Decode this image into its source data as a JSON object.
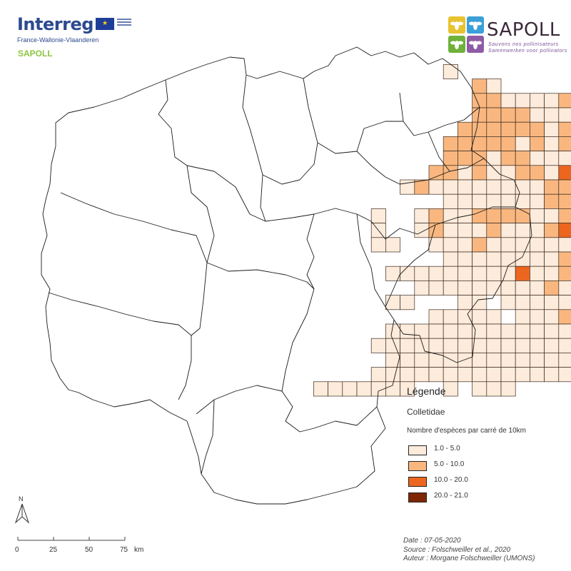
{
  "logos": {
    "interreg_name": "Interreg",
    "interreg_subtitle": "France-Wallonie-Vlaanderen",
    "sapoll_small": "SAPOLL",
    "sapoll_main": "SAPOLL",
    "sapoll_tagline_1": "Sauvons nos pollinisateurs",
    "sapoll_tagline_2": "Samenwerken voor pollinators",
    "colors": {
      "interreg_blue": "#2c4a8f",
      "sapoll_green": "#8cc63f",
      "sapoll_purple": "#7a4e98",
      "tile_yellow": "#e8c32f",
      "tile_blue": "#3b9fd8",
      "tile_green": "#6fb23a",
      "tile_purple": "#8e5ba6"
    }
  },
  "legend": {
    "title": "Légende",
    "layer": "Colletidae",
    "description": "Nombre d'espèces par carré de 10km",
    "classes": [
      {
        "label": "1.0 - 5.0",
        "color": "#fdebdb"
      },
      {
        "label": "5.0 - 10.0",
        "color": "#f9b77f"
      },
      {
        "label": "10.0 - 20.0",
        "color": "#ec6620"
      },
      {
        "label": "20.0 - 21.0",
        "color": "#7f2704"
      }
    ]
  },
  "north_arrow": {
    "label": "N"
  },
  "scale_bar": {
    "ticks": [
      "0",
      "25",
      "50",
      "75"
    ],
    "unit": "km"
  },
  "credits": {
    "date": "Date : 07-05-2020",
    "source": "Source : Folschweiller et al., 2020",
    "author": "Auteur : Morgane Folschweiller (UMONS)"
  },
  "map": {
    "layer_name": "Colletidae",
    "region_outline_color": "#1a1a1a",
    "grid_rows": [
      "...........................................................",
      "..................................................1.......",
      "...............................1...................11.....",
      ".................................21..........11111111.....",
      ".................................22111121211121111211.....",
      ".................................22221111211111221111.....",
      "................................22222212211111212111......",
      "...............................2222212121112222211........",
      "...............................2221221113333321332121.....",
      "..............................22121122133332333222111.....",
      "............................1211111111222223333322211.....",
      "...............................1111111222332332333331.....",
      "..........................1..121122221122233332233321.....",
      "..........................1..1211121112333433332232121....",
      "..........................11..111211111112122223323332....",
      "...............................11111111211222332233332....",
      "...........................11111111131121112133331331.....",
      ".............................1111111112111123222223311....",
      "...........................11...11.1111112123222323221....",
      "..............................11111.11121211232222111.....",
      "...........................11111111111111111332221112.....",
      "..........................11111111111111111131111111......",
      "...........................1111111111111133331111111......",
      "..........................111111111111111111111111........",
      "......................1111111..1.111......1111111.........",
      "..............................................1..21........",
      "..............................................11.11........",
      "..............................................1111........"
    ]
  }
}
